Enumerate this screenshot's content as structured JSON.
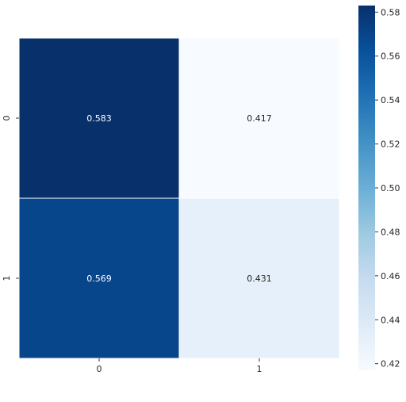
{
  "chart_data": {
    "type": "heatmap",
    "x_categories": [
      "0",
      "1"
    ],
    "y_categories": [
      "0",
      "1"
    ],
    "values": [
      [
        0.583,
        0.417
      ],
      [
        0.569,
        0.431
      ]
    ],
    "value_labels": [
      [
        "0.583",
        "0.417"
      ],
      [
        "0.569",
        "0.431"
      ]
    ],
    "colormap": "Blues",
    "color_range": [
      0.417,
      0.583
    ],
    "colorbar_ticks": [
      "0.42",
      "0.44",
      "0.46",
      "0.48",
      "0.50",
      "0.52",
      "0.54",
      "0.56",
      "0.58"
    ],
    "cell_text_colors": {
      "dark": "#ffffff",
      "light": "#262626"
    },
    "xlabel": "",
    "ylabel": "",
    "title": ""
  }
}
